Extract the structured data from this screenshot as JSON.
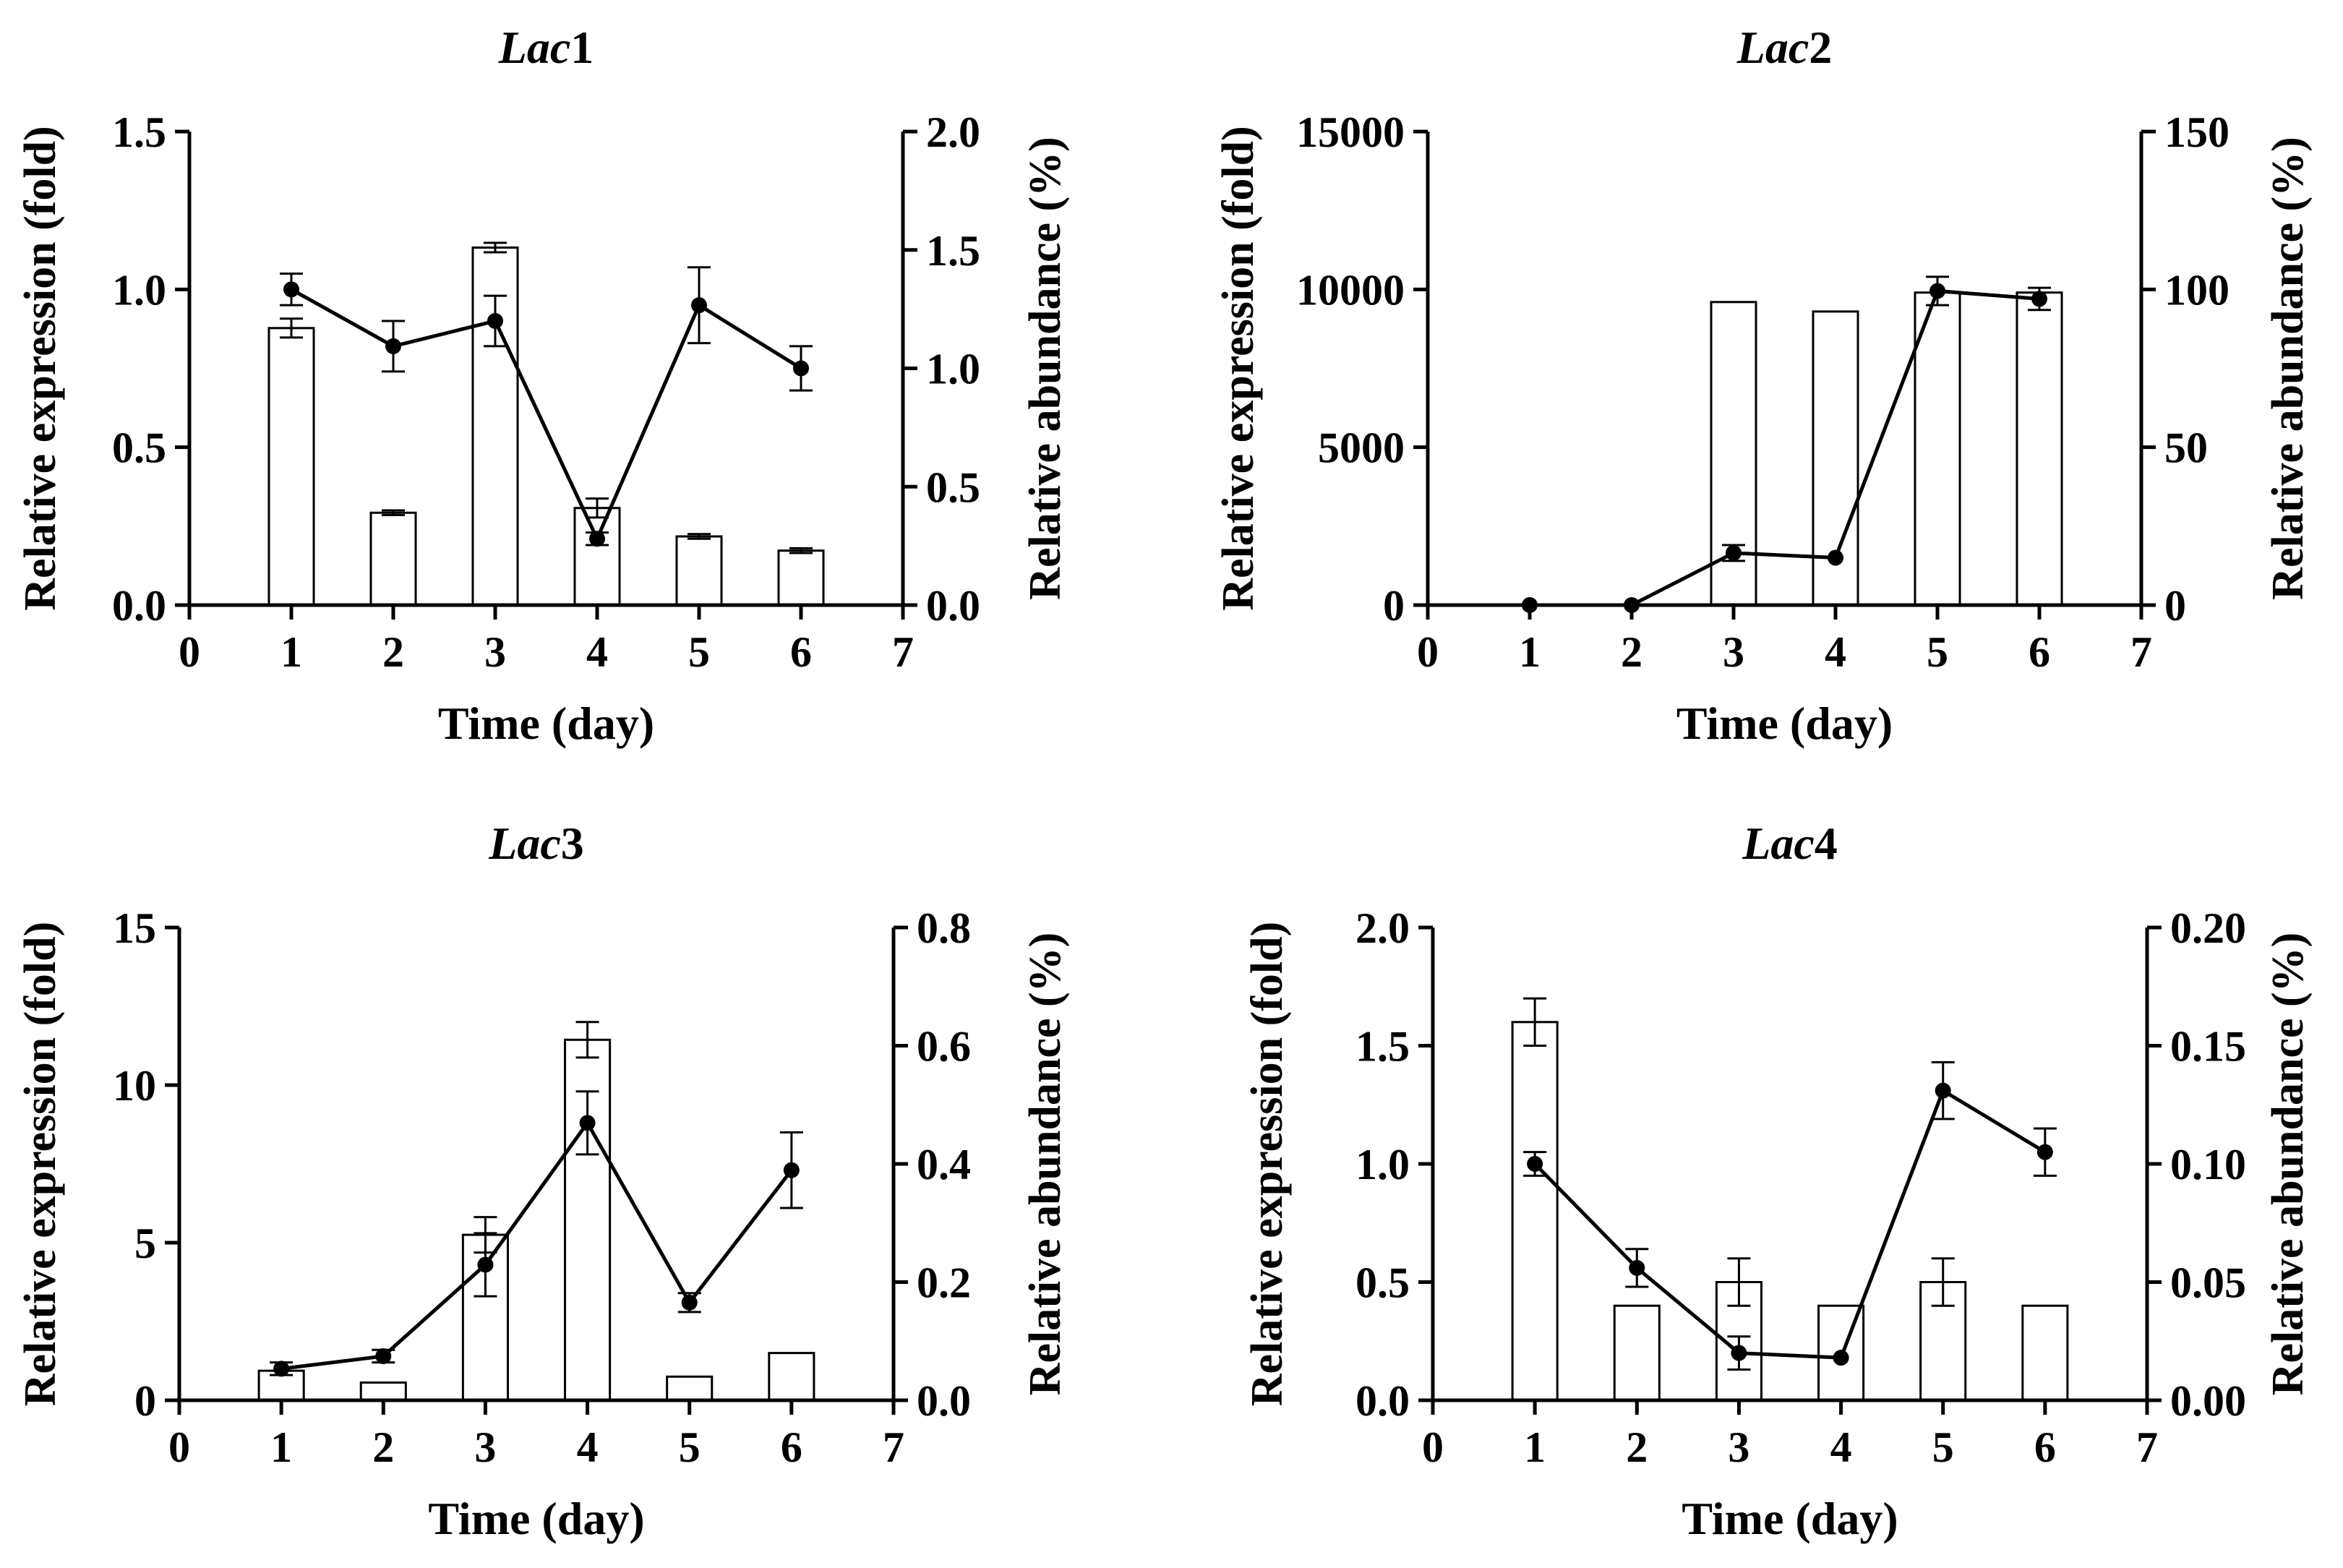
{
  "figure": {
    "xlabel": "Time (day)",
    "ylabel_left": "Relative expression (fold)",
    "ylabel_right": "Relative abundance (%)"
  },
  "chart_data": [
    {
      "type": "bar+line",
      "title": "Lac1",
      "title_name": "Lac",
      "title_num": "1",
      "xlabel": "Time (day)",
      "ylabel": "Relative expression (fold)",
      "y2label": "Relative abundance (%)",
      "xlim": [
        0,
        7
      ],
      "xticks": [
        "0",
        "1",
        "2",
        "3",
        "4",
        "5",
        "6",
        "7"
      ],
      "ylim": [
        0,
        1.5
      ],
      "yticks": [
        "0.0",
        "0.5",
        "1.0",
        "1.5"
      ],
      "y2lim": [
        0,
        2.0
      ],
      "y2ticks": [
        "0.0",
        "0.5",
        "1.0",
        "1.5",
        "2.0"
      ],
      "x": [
        1,
        2,
        3,
        4,
        5,
        6
      ],
      "bars": {
        "name": "Relative abundance (%)",
        "axis": "right",
        "values": [
          1.17,
          0.39,
          1.51,
          0.41,
          0.29,
          0.23
        ],
        "errors": [
          0.04,
          0.01,
          0.02,
          0.04,
          0.01,
          0.01
        ]
      },
      "line": {
        "name": "Relative expression (fold)",
        "axis": "left",
        "values": [
          1.0,
          0.82,
          0.9,
          0.21,
          0.95,
          0.75
        ],
        "errors": [
          0.05,
          0.08,
          0.08,
          0.02,
          0.12,
          0.07
        ]
      }
    },
    {
      "type": "bar+line",
      "title": "Lac2",
      "title_name": "Lac",
      "title_num": "2",
      "xlabel": "Time (day)",
      "ylabel": "Relative expression (fold)",
      "y2label": "Relative abundance (%)",
      "xlim": [
        0,
        7
      ],
      "xticks": [
        "0",
        "1",
        "2",
        "3",
        "4",
        "5",
        "6",
        "7"
      ],
      "ylim": [
        0,
        15000
      ],
      "yticks": [
        "0",
        "5000",
        "10000",
        "15000"
      ],
      "y2lim": [
        0,
        150
      ],
      "y2ticks": [
        "0",
        "50",
        "100",
        "150"
      ],
      "x": [
        1,
        2,
        3,
        4,
        5,
        6
      ],
      "bars": {
        "name": "Relative abundance (%)",
        "axis": "right",
        "values": [
          0,
          0,
          96,
          93,
          99,
          99
        ],
        "errors": [
          0,
          0,
          0,
          0,
          0,
          0
        ]
      },
      "line": {
        "name": "Relative expression (fold)",
        "axis": "left",
        "values": [
          0,
          0,
          1650,
          1500,
          9950,
          9700
        ],
        "errors": [
          0,
          0,
          250,
          0,
          450,
          350
        ]
      }
    },
    {
      "type": "bar+line",
      "title": "Lac3",
      "title_name": "Lac",
      "title_num": "3",
      "xlabel": "Time (day)",
      "ylabel": "Relative expression (fold)",
      "y2label": "Relative abundance (%)",
      "xlim": [
        0,
        7
      ],
      "xticks": [
        "0",
        "1",
        "2",
        "3",
        "4",
        "5",
        "6",
        "7"
      ],
      "ylim": [
        0,
        15
      ],
      "yticks": [
        "0",
        "5",
        "10",
        "15"
      ],
      "y2lim": [
        0,
        0.8
      ],
      "y2ticks": [
        "0.0",
        "0.2",
        "0.4",
        "0.6",
        "0.8"
      ],
      "x": [
        1,
        2,
        3,
        4,
        5,
        6
      ],
      "bars": {
        "name": "Relative abundance (%)",
        "axis": "right",
        "values": [
          0.05,
          0.03,
          0.28,
          0.61,
          0.04,
          0.08
        ],
        "errors": [
          0,
          0,
          0.03,
          0.03,
          0,
          0
        ]
      },
      "line": {
        "name": "Relative expression (fold)",
        "axis": "left",
        "values": [
          1.0,
          1.4,
          4.3,
          8.8,
          3.1,
          7.3
        ],
        "errors": [
          0.2,
          0.2,
          1.0,
          1.0,
          0.3,
          1.2
        ]
      }
    },
    {
      "type": "bar+line",
      "title": "Lac4",
      "title_name": "Lac",
      "title_num": "4",
      "xlabel": "Time (day)",
      "ylabel": "Relative expression (fold)",
      "y2label": "Relative abundance (%)",
      "xlim": [
        0,
        7
      ],
      "xticks": [
        "0",
        "1",
        "2",
        "3",
        "4",
        "5",
        "6",
        "7"
      ],
      "ylim": [
        0,
        2.0
      ],
      "yticks": [
        "0.0",
        "0.5",
        "1.0",
        "1.5",
        "2.0"
      ],
      "y2lim": [
        0,
        0.2
      ],
      "y2ticks": [
        "0.00",
        "0.05",
        "0.10",
        "0.15",
        "0.20"
      ],
      "x": [
        1,
        2,
        3,
        4,
        5,
        6
      ],
      "bars": {
        "name": "Relative abundance (%)",
        "axis": "right",
        "values": [
          0.16,
          0.04,
          0.05,
          0.04,
          0.05,
          0.04
        ],
        "errors": [
          0.01,
          0,
          0.01,
          0,
          0.01,
          0
        ]
      },
      "line": {
        "name": "Relative expression (fold)",
        "axis": "left",
        "values": [
          1.0,
          0.56,
          0.2,
          0.18,
          1.31,
          1.05
        ],
        "errors": [
          0.05,
          0.08,
          0.07,
          0,
          0.12,
          0.1
        ]
      }
    }
  ]
}
